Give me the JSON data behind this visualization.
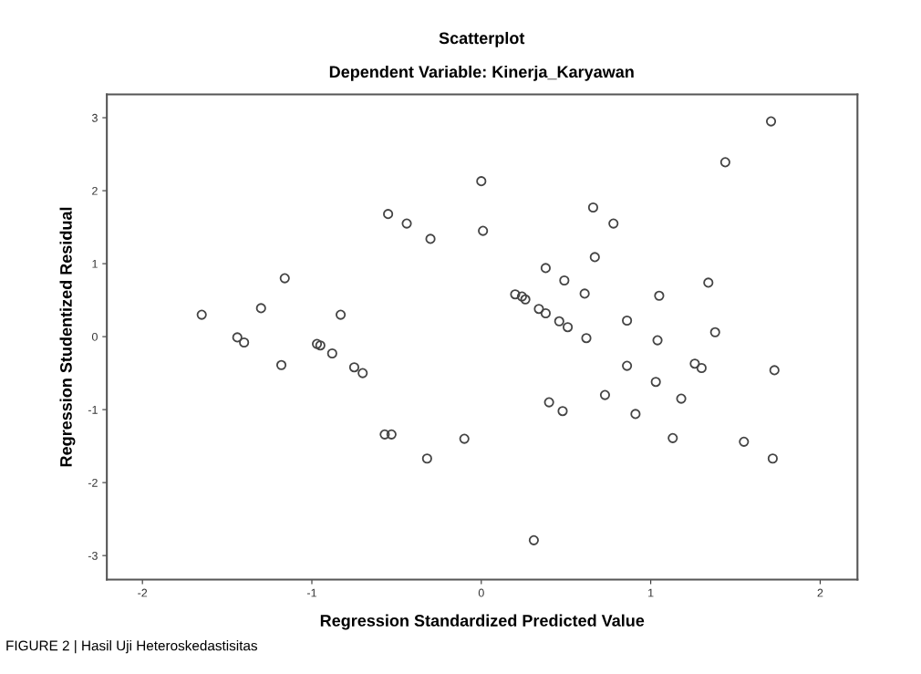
{
  "chart_data": {
    "type": "scatter",
    "title": "Scatterplot",
    "subtitle": "Dependent Variable: Kinerja_Karyawan",
    "xlabel": "Regression Standardized Predicted Value",
    "ylabel": "Regression Studentized Residual",
    "x": [
      -1.65,
      -1.44,
      -1.4,
      -1.3,
      -1.16,
      -0.83,
      -0.97,
      -0.95,
      -0.88,
      -0.55,
      -0.44,
      -0.3,
      0.0,
      0.01,
      -1.18,
      -0.75,
      -0.7,
      -0.57,
      -0.53,
      -0.32,
      -0.1,
      1.71,
      1.44,
      0.66,
      0.78,
      0.67,
      0.38,
      0.49,
      1.34,
      0.2,
      0.24,
      0.26,
      0.61,
      1.05,
      0.34,
      0.38,
      0.46,
      0.51,
      0.62,
      0.86,
      1.04,
      1.38,
      0.86,
      1.26,
      1.3,
      1.73,
      1.03,
      0.73,
      1.18,
      0.4,
      0.48,
      0.91,
      1.13,
      1.55,
      1.72,
      0.31
    ],
    "values": [
      0.3,
      -0.01,
      -0.08,
      0.39,
      0.8,
      0.3,
      -0.1,
      -0.12,
      -0.23,
      1.68,
      1.55,
      1.34,
      2.13,
      1.45,
      -0.39,
      -0.42,
      -0.5,
      -1.34,
      -1.34,
      -1.67,
      -1.4,
      2.95,
      2.39,
      1.77,
      1.55,
      1.09,
      0.94,
      0.77,
      0.74,
      0.58,
      0.55,
      0.51,
      0.59,
      0.56,
      0.38,
      0.32,
      0.21,
      0.13,
      -0.02,
      0.22,
      -0.05,
      0.06,
      -0.4,
      -0.37,
      -0.43,
      -0.46,
      -0.62,
      -0.8,
      -0.85,
      -0.9,
      -1.02,
      -1.06,
      -1.39,
      -1.44,
      -1.67,
      -2.79
    ],
    "color": "#444444",
    "marker": "circle",
    "grid": false,
    "xlim": [
      -2.21,
      2.22
    ],
    "xticks": [
      -2,
      -1,
      0,
      1,
      2
    ],
    "ylim": [
      -3.33,
      3.32
    ],
    "yticks": [
      -3,
      -2,
      -1,
      0,
      1,
      2,
      3
    ],
    "annotations": [
      "FIGURE 2 | Hasil Uji Heteroskedastisitas"
    ]
  }
}
